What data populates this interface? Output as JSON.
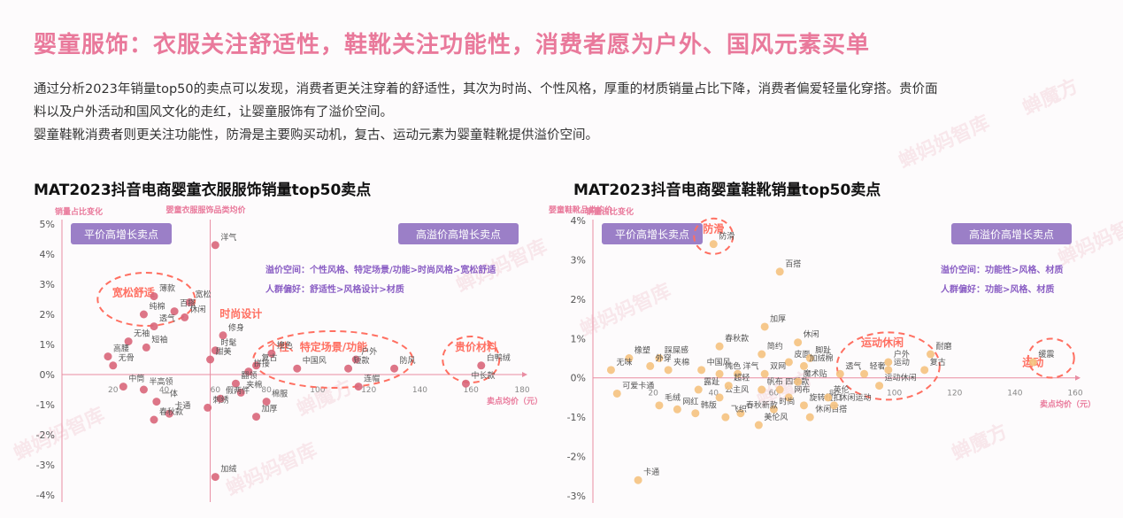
{
  "title": "婴童服饰：衣服关注舒适性，鞋靴关注功能性，消费者愿为户外、国风元素买单",
  "intro": {
    "line1": "通过分析2023年销量top50的卖点可以发现，消费者更关注穿着的舒适性，其次为时尚、个性风格，厚重的材质销量占比下降，消费者偏爱轻量化穿搭。贵价面",
    "line2": "料以及户外活动和国风文化的走红，让婴童服饰有了溢价空间。",
    "line3": "婴童鞋靴消费者则更关注功能性，防滑是主要购买动机，复古、运动元素为婴童鞋靴提供溢价空间。"
  },
  "colors": {
    "accent": "#e9799b",
    "point": "#d9667a",
    "point2": "#f5c27f",
    "axis": "#e98da2",
    "badge": "#9b7fc7",
    "purple_text": "#8a5ec4",
    "highlight": "#ff6f61"
  },
  "chart_data": [
    {
      "type": "scatter",
      "title": "MAT2023抖音电商婴童衣服服饰销量top50卖点",
      "ylabel": "销量占比变化",
      "xlabel_top": "婴童衣服服饰品类均价",
      "xlabel": "卖点均价（元）",
      "x_ticks": [
        "20",
        "40",
        "60",
        "80",
        "100",
        "120",
        "140",
        "160",
        "180"
      ],
      "y_ticks": [
        "5%",
        "4%",
        "3%",
        "2%",
        "1%",
        "0%",
        "-1%",
        "-2%",
        "-3%",
        "-4%"
      ],
      "xlim": [
        0,
        180
      ],
      "ylim": [
        -4,
        5
      ],
      "crossing_x": 58,
      "badge_left": "平价高增长卖点",
      "badge_right": "高溢价高增长卖点",
      "note1": "溢价空间：个性风格、特定场景/功能>时尚风格>宽松舒适",
      "note2": "人群偏好：舒适性>风格设计>材质",
      "highlights": [
        "宽松舒适",
        "时尚设计",
        "个性、特定场景/功能",
        "贵价材料"
      ],
      "points": [
        {
          "label": "洋气",
          "x": 60,
          "y": 4.3
        },
        {
          "label": "薄款",
          "x": 36,
          "y": 2.6
        },
        {
          "label": "宽松",
          "x": 50,
          "y": 2.4
        },
        {
          "label": "百搭",
          "x": 44,
          "y": 2.1
        },
        {
          "label": "休闲",
          "x": 48,
          "y": 1.9
        },
        {
          "label": "纯棉",
          "x": 32,
          "y": 2.0
        },
        {
          "label": "透气",
          "x": 36,
          "y": 1.6
        },
        {
          "label": "无袖",
          "x": 26,
          "y": 1.1
        },
        {
          "label": "短袖",
          "x": 33,
          "y": 0.9
        },
        {
          "label": "高腰",
          "x": 18,
          "y": 0.6
        },
        {
          "label": "无骨",
          "x": 20,
          "y": 0.3
        },
        {
          "label": "修身",
          "x": 63,
          "y": 1.3
        },
        {
          "label": "时髦",
          "x": 60,
          "y": 0.8
        },
        {
          "label": "甜美",
          "x": 58,
          "y": 0.5
        },
        {
          "label": "撞色",
          "x": 82,
          "y": 0.7
        },
        {
          "label": "复古",
          "x": 76,
          "y": 0.3
        },
        {
          "label": "中国风",
          "x": 92,
          "y": 0.2
        },
        {
          "label": "拼接",
          "x": 73,
          "y": 0.1
        },
        {
          "label": "户外",
          "x": 115,
          "y": 0.5
        },
        {
          "label": "短款",
          "x": 112,
          "y": 0.2
        },
        {
          "label": "防风",
          "x": 130,
          "y": 0.2
        },
        {
          "label": "白鸭绒",
          "x": 164,
          "y": 0.3
        },
        {
          "label": "中长款",
          "x": 158,
          "y": -0.3
        },
        {
          "label": "连帽",
          "x": 116,
          "y": -0.4
        },
        {
          "label": "翻领",
          "x": 68,
          "y": -0.3
        },
        {
          "label": "夹棉",
          "x": 70,
          "y": -0.6
        },
        {
          "label": "棉服",
          "x": 80,
          "y": -0.9
        },
        {
          "label": "假两件",
          "x": 62,
          "y": -0.8
        },
        {
          "label": "刺绣",
          "x": 57,
          "y": -1.1
        },
        {
          "label": "加厚",
          "x": 76,
          "y": -1.4
        },
        {
          "label": "中筒",
          "x": 24,
          "y": -0.4
        },
        {
          "label": "半高领",
          "x": 32,
          "y": -0.5
        },
        {
          "label": "一体",
          "x": 37,
          "y": -0.9
        },
        {
          "label": "卡通",
          "x": 42,
          "y": -1.3
        },
        {
          "label": "春秋款",
          "x": 36,
          "y": -1.5
        },
        {
          "label": "加绒",
          "x": 60,
          "y": -3.4
        }
      ]
    },
    {
      "type": "scatter",
      "title": "MAT2023抖音电商婴童鞋靴销量top50卖点",
      "ylabel": "销量占比变化",
      "xlabel_top": "婴童鞋靴品类均价",
      "xlabel": "卖点均价（元）",
      "x_ticks": [
        "20",
        "40",
        "60",
        "80",
        "100",
        "120",
        "140",
        "160"
      ],
      "y_ticks": [
        "4%",
        "3%",
        "2%",
        "1%",
        "0%",
        "-1%",
        "-2%",
        "-3%"
      ],
      "xlim": [
        0,
        160
      ],
      "ylim": [
        -3,
        4
      ],
      "crossing_x": 0,
      "badge_left": "平价高增长卖点",
      "badge_right": "高溢价高增长卖点",
      "note1": "溢价空间：功能性>风格、材质",
      "note2": "人群偏好：功能>风格、材质",
      "highlights": [
        "防滑",
        "运动休闲",
        "运动"
      ],
      "points": [
        {
          "label": "防滑",
          "x": 40,
          "y": 3.4
        },
        {
          "label": "百搭",
          "x": 62,
          "y": 2.7
        },
        {
          "label": "加厚",
          "x": 57,
          "y": 1.3
        },
        {
          "label": "春秋款",
          "x": 42,
          "y": 0.8
        },
        {
          "label": "简约",
          "x": 56,
          "y": 0.6
        },
        {
          "label": "休闲",
          "x": 68,
          "y": 0.9
        },
        {
          "label": "橡塑",
          "x": 12,
          "y": 0.5
        },
        {
          "label": "踩屎感",
          "x": 22,
          "y": 0.5
        },
        {
          "label": "外穿",
          "x": 19,
          "y": 0.3
        },
        {
          "label": "无味",
          "x": 6,
          "y": 0.2
        },
        {
          "label": "夹棉",
          "x": 25,
          "y": 0.2
        },
        {
          "label": "中国风",
          "x": 36,
          "y": 0.2
        },
        {
          "label": "纯色",
          "x": 42,
          "y": 0.1
        },
        {
          "label": "洋气",
          "x": 48,
          "y": 0.1
        },
        {
          "label": "皮面",
          "x": 65,
          "y": 0.4
        },
        {
          "label": "脚趾",
          "x": 72,
          "y": 0.5
        },
        {
          "label": "双网",
          "x": 57,
          "y": 0.1
        },
        {
          "label": "加绒棉",
          "x": 70,
          "y": 0.3
        },
        {
          "label": "透气",
          "x": 82,
          "y": 0.1
        },
        {
          "label": "轻奢",
          "x": 90,
          "y": 0.1
        },
        {
          "label": "户外",
          "x": 98,
          "y": 0.4
        },
        {
          "label": "耐磨",
          "x": 112,
          "y": 0.6
        },
        {
          "label": "运动",
          "x": 98,
          "y": 0.2
        },
        {
          "label": "复古",
          "x": 110,
          "y": 0.2
        },
        {
          "label": "缓震",
          "x": 146,
          "y": 0.4
        },
        {
          "label": "可爱卡通",
          "x": 8,
          "y": -0.4
        },
        {
          "label": "毛绒",
          "x": 22,
          "y": -0.7
        },
        {
          "label": "网红",
          "x": 28,
          "y": -0.8
        },
        {
          "label": "韩版",
          "x": 34,
          "y": -0.9
        },
        {
          "label": "公主风",
          "x": 42,
          "y": -0.5
        },
        {
          "label": "露趾",
          "x": 35,
          "y": -0.3
        },
        {
          "label": "超轻",
          "x": 45,
          "y": -0.2
        },
        {
          "label": "帆布",
          "x": 56,
          "y": -0.3
        },
        {
          "label": "四季款",
          "x": 62,
          "y": -0.3
        },
        {
          "label": "魔术贴",
          "x": 68,
          "y": -0.1
        },
        {
          "label": "网布",
          "x": 65,
          "y": -0.5
        },
        {
          "label": "时尚",
          "x": 60,
          "y": -0.8
        },
        {
          "label": "春秋新款",
          "x": 49,
          "y": -0.9
        },
        {
          "label": "飞织",
          "x": 44,
          "y": -1.0
        },
        {
          "label": "美伦风",
          "x": 55,
          "y": -1.2
        },
        {
          "label": "旋转纽扣",
          "x": 70,
          "y": -0.7
        },
        {
          "label": "休闲百搭",
          "x": 72,
          "y": -1.0
        },
        {
          "label": "休闲运动",
          "x": 80,
          "y": -0.7
        },
        {
          "label": "英伦",
          "x": 78,
          "y": -0.5
        },
        {
          "label": "运动休闲",
          "x": 95,
          "y": -0.2
        },
        {
          "label": "卡通",
          "x": 15,
          "y": -2.6
        }
      ]
    }
  ],
  "watermarks": [
    "蝉妈妈智库",
    "蝉魔方",
    "蝉妈妈智库",
    "蝉妈妈智库",
    "蝉魔方",
    "蝉妈妈智库",
    "蝉魔方",
    "蝉妈妈智库",
    "蝉魔方",
    "蝉妈妈智库"
  ]
}
